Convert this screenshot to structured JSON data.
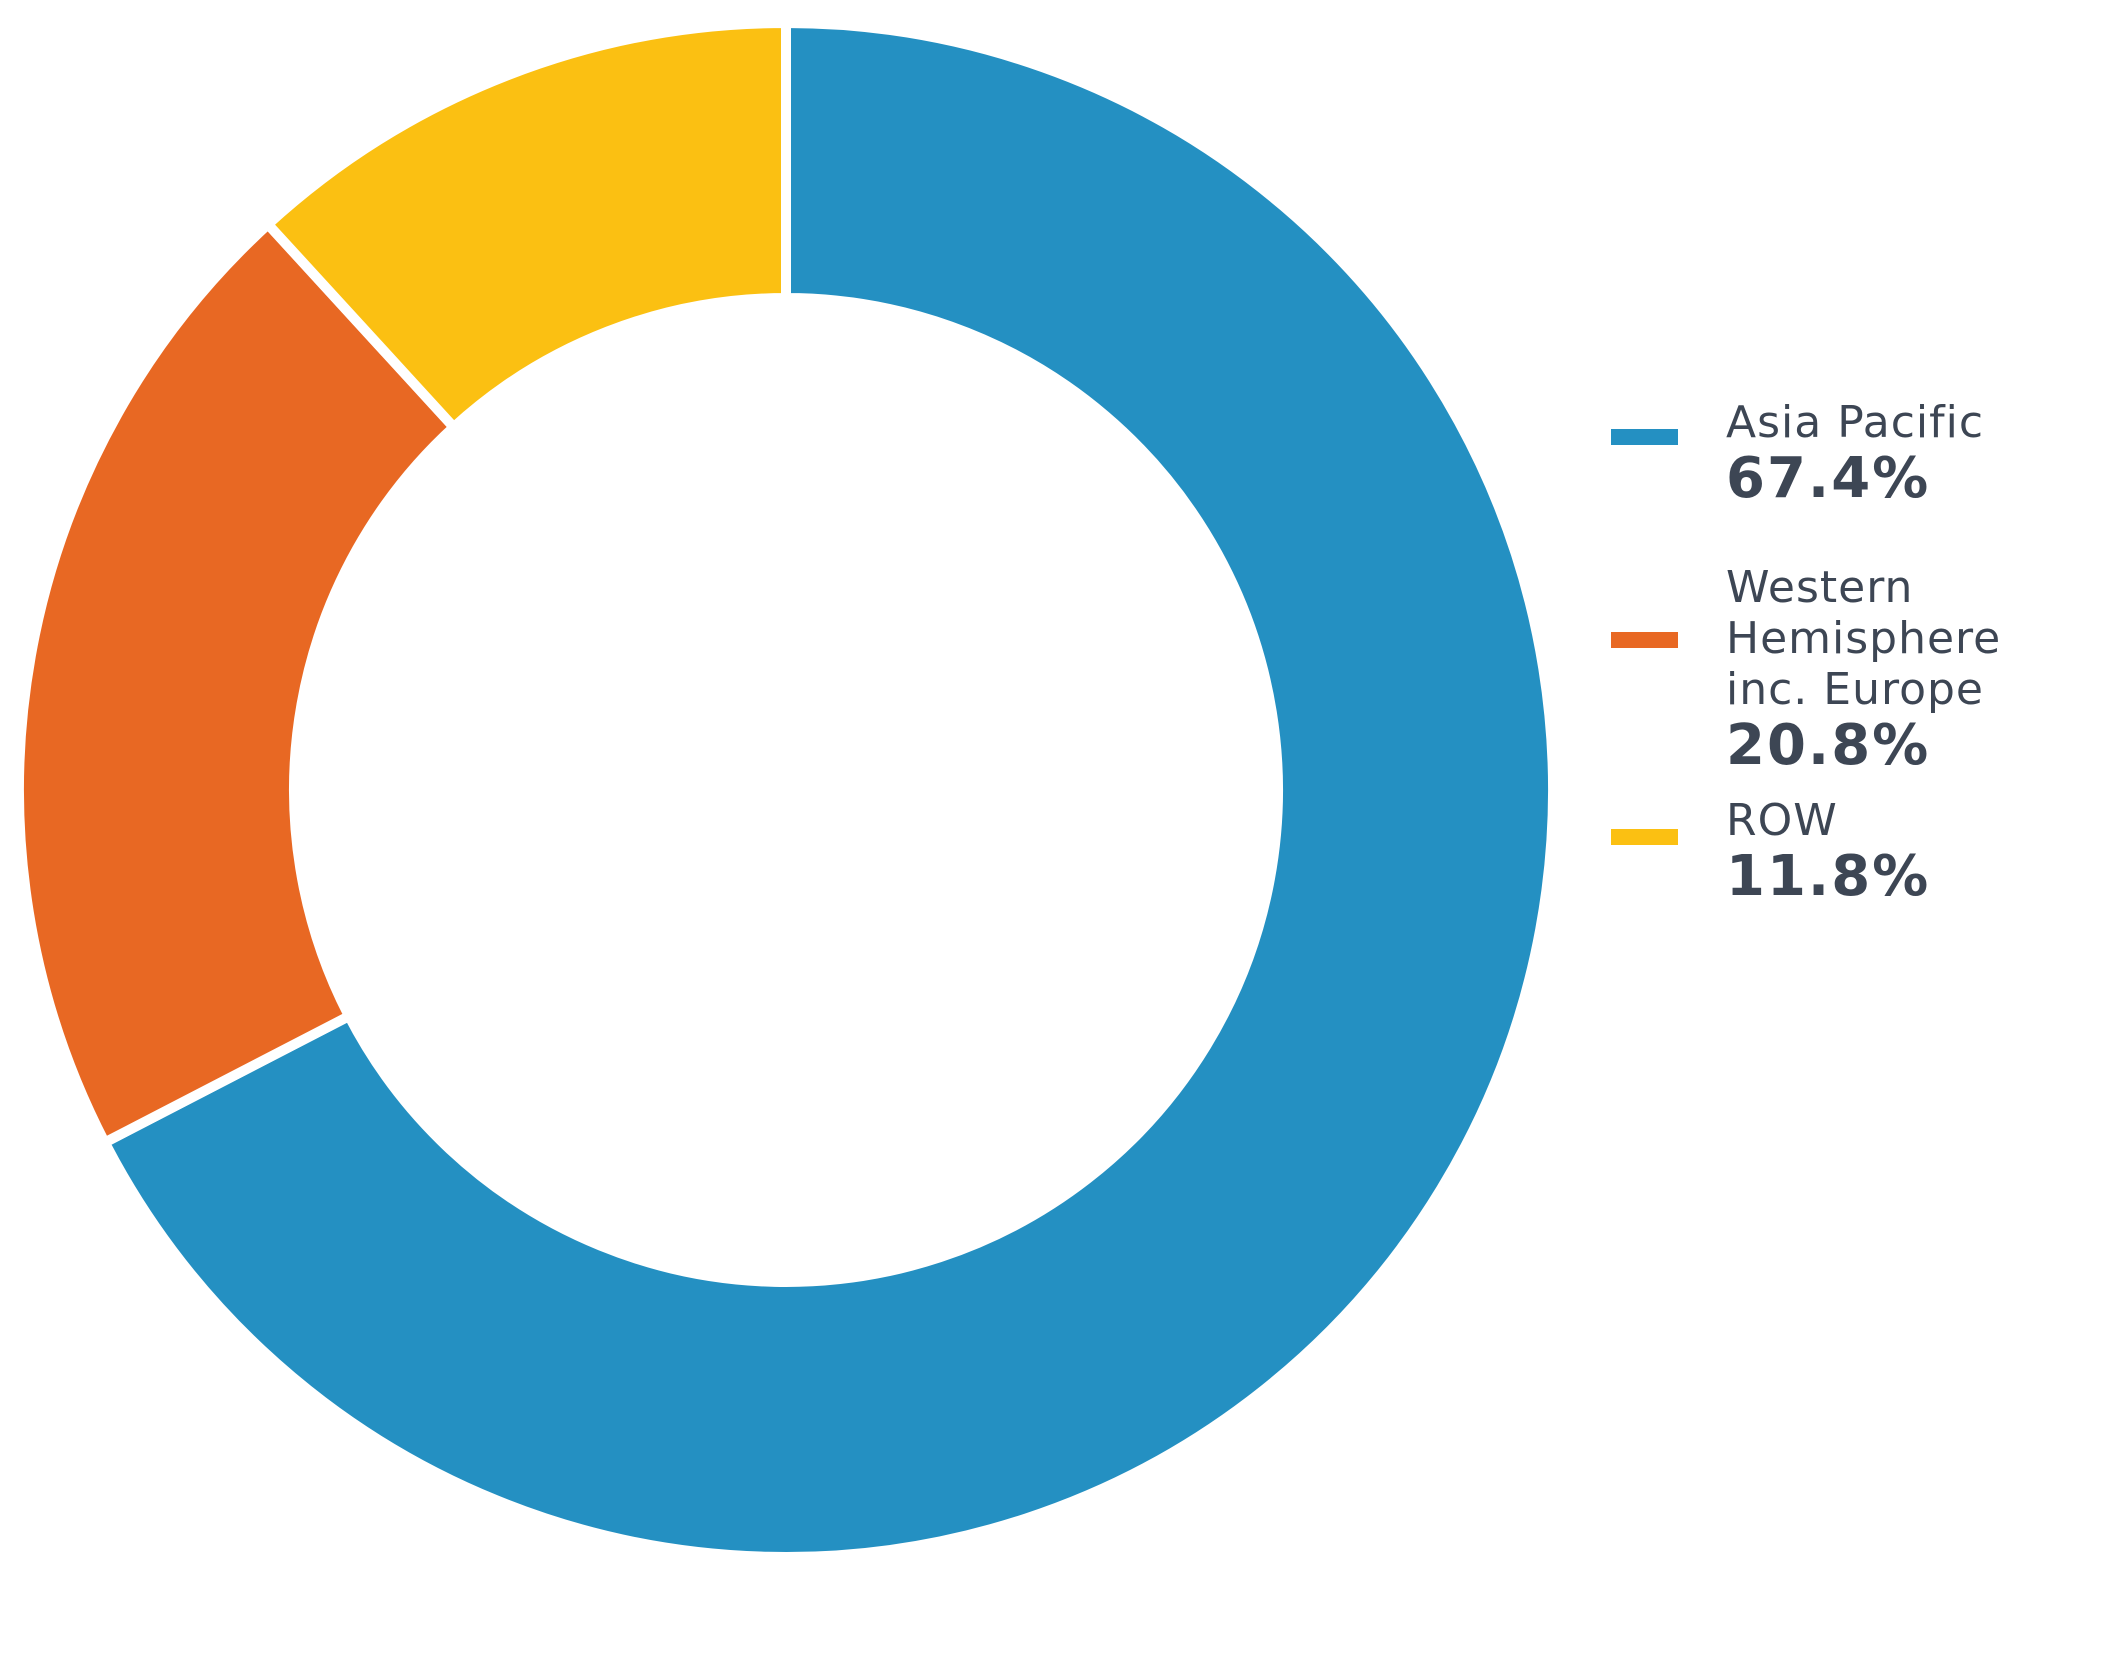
{
  "chart_data": {
    "type": "pie",
    "donut": true,
    "categories": [
      "Asia Pacific",
      "Western Hemisphere inc. Europe",
      "ROW"
    ],
    "values": [
      67.4,
      20.8,
      11.8
    ],
    "value_labels": [
      "67.4%",
      "20.8%",
      "11.8%"
    ],
    "colors": [
      "#2490c2",
      "#e86823",
      "#fbc012"
    ],
    "legend": {
      "placement": "right",
      "items": [
        {
          "name_lines": [
            "Asia Pacific"
          ],
          "value": "67.4%"
        },
        {
          "name_lines": [
            "Western",
            "Hemisphere",
            "inc. Europe"
          ],
          "value": "20.8%"
        },
        {
          "name_lines": [
            "ROW"
          ],
          "value": "11.8%"
        }
      ]
    }
  }
}
